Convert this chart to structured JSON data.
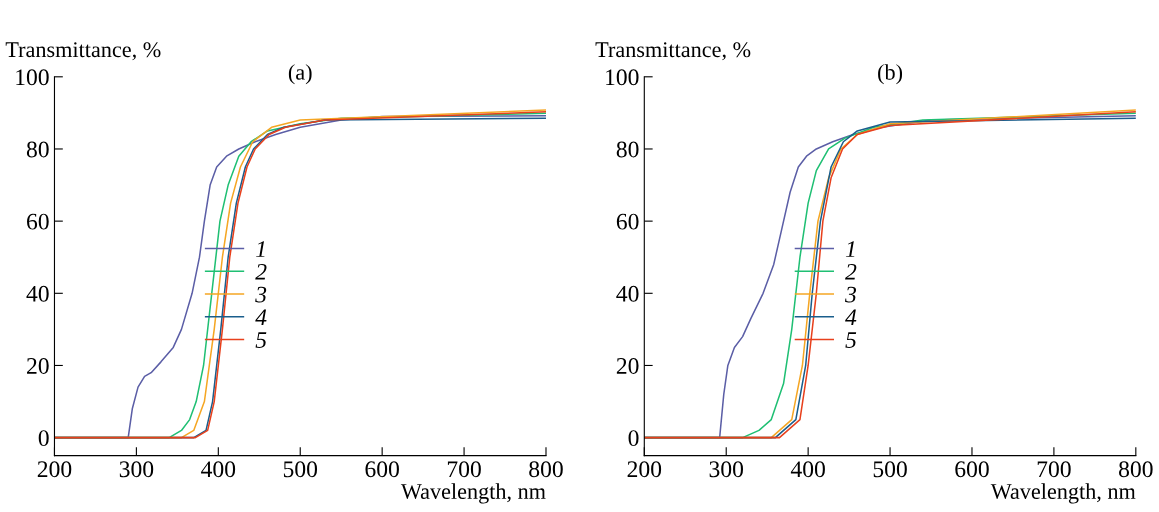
{
  "chart_data": [
    {
      "type": "line",
      "title": "(a)",
      "xlabel": "Wavelength, nm",
      "ylabel": "Transmittance, %",
      "xlim": [
        200,
        800
      ],
      "ylim": [
        -5,
        100
      ],
      "xticks": [
        200,
        300,
        400,
        500,
        600,
        700,
        800
      ],
      "yticks": [
        0,
        20,
        40,
        60,
        80,
        100
      ],
      "grid": false,
      "legend": "center",
      "line_style": "solid",
      "marker": "none",
      "series": [
        {
          "name": "1",
          "color": "#5b5ea6",
          "x": [
            200,
            290,
            295,
            302,
            310,
            318,
            330,
            345,
            355,
            368,
            377,
            383,
            390,
            398,
            410,
            425,
            445,
            470,
            500,
            550,
            600,
            800
          ],
          "values": [
            0,
            0,
            8,
            14,
            17,
            18,
            21,
            25,
            30,
            40,
            50,
            60,
            70,
            75,
            78,
            80,
            82,
            84,
            86,
            88,
            89,
            89.2
          ]
        },
        {
          "name": "2",
          "color": "#1fbf73",
          "x": [
            200,
            340,
            355,
            365,
            373,
            382,
            392,
            402,
            412,
            425,
            440,
            460,
            500,
            550,
            800
          ],
          "values": [
            0,
            0,
            2,
            5,
            10,
            20,
            40,
            60,
            70,
            78,
            82,
            85,
            87,
            88.5,
            89.9
          ]
        },
        {
          "name": "3",
          "color": "#f5a623",
          "x": [
            200,
            355,
            370,
            383,
            395,
            405,
            415,
            427,
            442,
            465,
            500,
            800
          ],
          "values": [
            0,
            0,
            2,
            10,
            30,
            50,
            65,
            75,
            82,
            86,
            88,
            90.8
          ]
        },
        {
          "name": "4",
          "color": "#1a5e8c",
          "x": [
            200,
            370,
            385,
            393,
            403,
            412,
            422,
            433,
            443,
            460,
            480,
            530,
            800
          ],
          "values": [
            0,
            0,
            2,
            10,
            30,
            50,
            65,
            75,
            80,
            84,
            86,
            88,
            88.5
          ]
        },
        {
          "name": "5",
          "color": "#e8401c",
          "x": [
            200,
            372,
            387,
            395,
            405,
            414,
            424,
            435,
            445,
            462,
            482,
            530,
            800
          ],
          "values": [
            0,
            0,
            2,
            10,
            30,
            50,
            65,
            75,
            80,
            84,
            86,
            88,
            90.3
          ]
        }
      ]
    },
    {
      "type": "line",
      "title": "(b)",
      "xlabel": "Wavelength, nm",
      "ylabel": "Transmittance, %",
      "xlim": [
        200,
        800
      ],
      "ylim": [
        -5,
        100
      ],
      "xticks": [
        200,
        300,
        400,
        500,
        600,
        700,
        800
      ],
      "yticks": [
        0,
        20,
        40,
        60,
        80,
        100
      ],
      "grid": false,
      "legend": "center",
      "line_style": "solid",
      "marker": "none",
      "series": [
        {
          "name": "1",
          "color": "#5b5ea6",
          "x": [
            200,
            292,
            297,
            302,
            310,
            320,
            330,
            345,
            358,
            368,
            378,
            388,
            398,
            410,
            430,
            455,
            490,
            550,
            800
          ],
          "values": [
            0,
            0,
            12,
            20,
            25,
            28,
            33,
            40,
            48,
            58,
            68,
            75,
            78,
            80,
            82,
            84,
            86,
            88,
            89.2
          ]
        },
        {
          "name": "2",
          "color": "#1fbf73",
          "x": [
            200,
            320,
            340,
            355,
            370,
            380,
            390,
            400,
            410,
            425,
            445,
            480,
            540,
            800
          ],
          "values": [
            0,
            0,
            2,
            5,
            15,
            30,
            50,
            65,
            74,
            80,
            83,
            86,
            88,
            89.9
          ]
        },
        {
          "name": "3",
          "color": "#f5a623",
          "x": [
            200,
            355,
            380,
            393,
            402,
            412,
            425,
            440,
            460,
            500,
            800
          ],
          "values": [
            0,
            0,
            5,
            20,
            40,
            60,
            72,
            80,
            84,
            87,
            90.8
          ]
        },
        {
          "name": "4",
          "color": "#1a5e8c",
          "x": [
            200,
            360,
            385,
            397,
            405,
            415,
            428,
            443,
            460,
            500,
            800
          ],
          "values": [
            0,
            0,
            5,
            20,
            40,
            60,
            75,
            82,
            85,
            87.5,
            88.5
          ]
        },
        {
          "name": "5",
          "color": "#e8401c",
          "x": [
            200,
            365,
            390,
            400,
            410,
            418,
            428,
            442,
            460,
            500,
            800
          ],
          "values": [
            0,
            0,
            5,
            20,
            40,
            60,
            72,
            80,
            84,
            86.5,
            90.3
          ]
        }
      ]
    }
  ]
}
